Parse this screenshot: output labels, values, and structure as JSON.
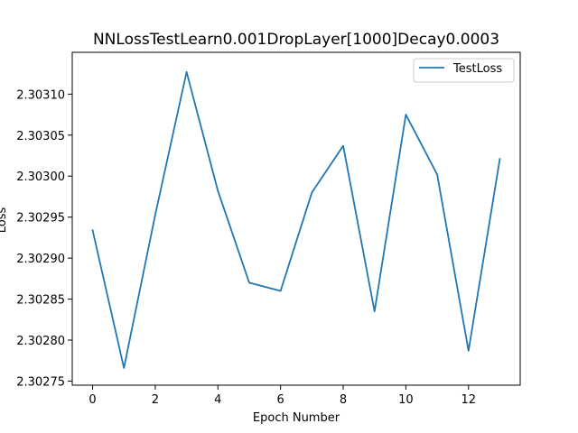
{
  "chart_data": {
    "type": "line",
    "title": "NNLossTestLearn0.001DropLayer[1000]Decay0.0003",
    "xlabel": "Epoch Number",
    "ylabel": "Loss",
    "xlim": [
      -0.65,
      13.65
    ],
    "ylim": [
      2.302745,
      2.303151
    ],
    "xticks": [
      0,
      2,
      4,
      6,
      8,
      10,
      12
    ],
    "xtick_labels": [
      "0",
      "2",
      "4",
      "6",
      "8",
      "10",
      "12"
    ],
    "yticks": [
      2.30275,
      2.3028,
      2.30285,
      2.3029,
      2.30295,
      2.303,
      2.30305,
      2.3031
    ],
    "ytick_labels": [
      "2.30275",
      "2.30280",
      "2.30285",
      "2.30290",
      "2.30295",
      "2.30300",
      "2.30305",
      "2.30310"
    ],
    "grid": false,
    "legend_position": "top-right",
    "series": [
      {
        "name": "TestLoss",
        "color": "#1f77b4",
        "x": [
          0,
          1,
          2,
          3,
          4,
          5,
          6,
          7,
          8,
          9,
          10,
          11,
          12,
          13
        ],
        "y": [
          2.302934,
          2.302766,
          2.302953,
          2.303127,
          2.302982,
          2.30287,
          2.30286,
          2.30298,
          2.303037,
          2.302835,
          2.303075,
          2.303002,
          2.302787,
          2.303021
        ]
      }
    ]
  }
}
